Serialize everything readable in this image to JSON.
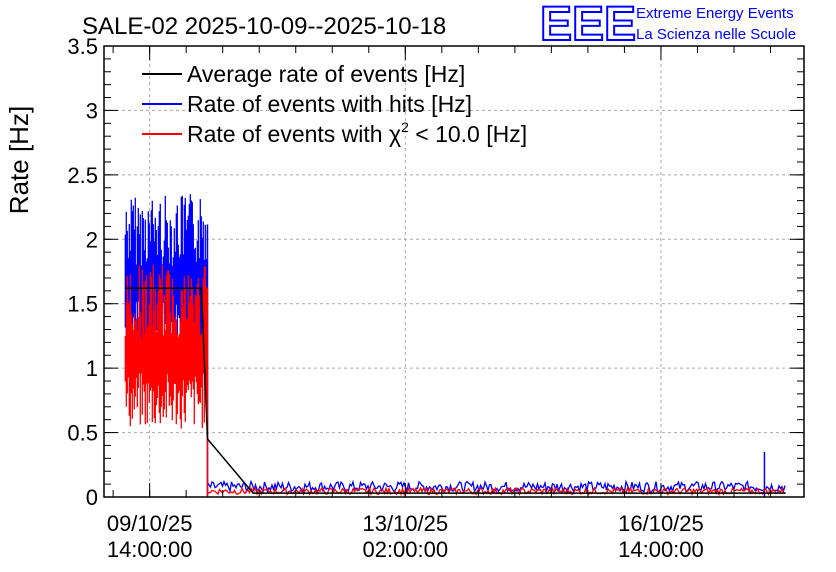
{
  "chart_data": {
    "type": "line",
    "title": "SALE-02 2025-10-09--2025-10-18",
    "ylabel": "Rate [Hz]",
    "xlabel": "",
    "ylim": [
      0,
      3.5
    ],
    "yticks": [
      "0",
      "0.5",
      "1",
      "1.5",
      "2",
      "2.5",
      "3",
      "3.5"
    ],
    "xticks": [
      {
        "line1": "09/10/25",
        "line2": "14:00:00"
      },
      {
        "line1": "13/10/25",
        "line2": "02:00:00"
      },
      {
        "line1": "16/10/25",
        "line2": "14:00:00"
      }
    ],
    "grid": true,
    "legend_position": "top-left",
    "colors": {
      "average": "#000000",
      "hits": "#0000ff",
      "chi2": "#ff0000",
      "logo": "#0000ff"
    },
    "series": [
      {
        "key": "average",
        "name": "Average rate of events [Hz]",
        "points": [
          [
            "2025-10-09 06:00",
            1.62
          ],
          [
            "2025-10-10 07:00",
            1.62
          ],
          [
            "2025-10-10 09:00",
            0.45
          ],
          [
            "2025-10-11 00:00",
            0.03
          ],
          [
            "2025-10-18 07:00",
            0.03
          ]
        ]
      },
      {
        "key": "hits",
        "name": "Rate of events with hits [Hz]",
        "points": [
          [
            "2025-10-09 06:00",
            1.95
          ],
          [
            "2025-10-09 10:00",
            2.1
          ],
          [
            "2025-10-09 14:00",
            1.9
          ],
          [
            "2025-10-09 18:00",
            2.0
          ],
          [
            "2025-10-09 22:00",
            1.85
          ],
          [
            "2025-10-10 02:00",
            1.95
          ],
          [
            "2025-10-10 06:00",
            1.8
          ],
          [
            "2025-10-10 09:00",
            0.05
          ],
          [
            "2025-10-12 00:00",
            0.05
          ],
          [
            "2025-10-15 00:00",
            0.08
          ],
          [
            "2025-10-18 00:00",
            0.35
          ],
          [
            "2025-10-18 07:00",
            0.05
          ]
        ],
        "range_min": 1.1,
        "range_max": 2.35
      },
      {
        "key": "chi2",
        "name": "Rate of events with χ² < 10.0 [Hz]",
        "name_prefix": "Rate of events with ",
        "name_symbol": "χ",
        "name_sup": "2",
        "name_suffix": " < 10.0 [Hz]",
        "points": [
          [
            "2025-10-09 06:00",
            1.4
          ],
          [
            "2025-10-09 10:00",
            1.5
          ],
          [
            "2025-10-09 14:00",
            1.35
          ],
          [
            "2025-10-09 18:00",
            1.45
          ],
          [
            "2025-10-09 22:00",
            1.3
          ],
          [
            "2025-10-10 02:00",
            1.4
          ],
          [
            "2025-10-10 06:00",
            1.3
          ],
          [
            "2025-10-10 09:00",
            0.03
          ],
          [
            "2025-10-12 00:00",
            0.03
          ],
          [
            "2025-10-15 00:00",
            0.04
          ],
          [
            "2025-10-18 07:00",
            0.03
          ]
        ],
        "range_min": 0.52,
        "range_max": 1.8
      }
    ]
  },
  "logo": {
    "mark": "EEE",
    "line1": "Extreme Energy Events",
    "line2": "La Scienza nelle Scuole"
  }
}
